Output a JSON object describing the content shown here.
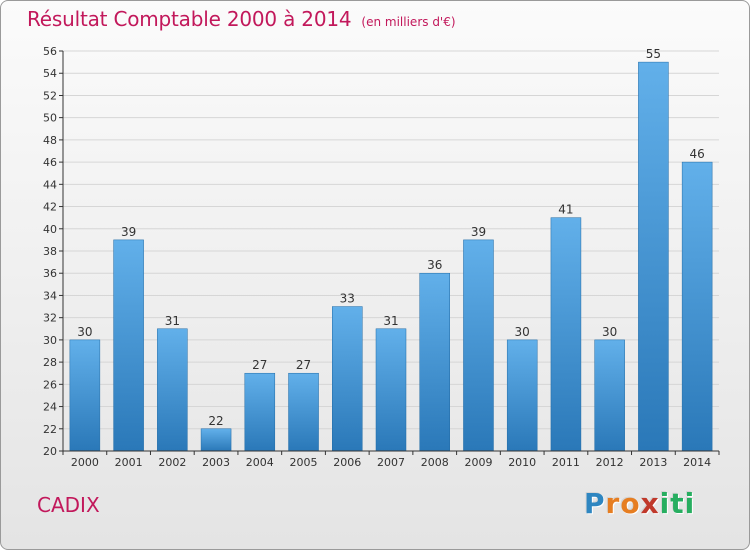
{
  "chart_data": {
    "type": "bar",
    "title": "Résultat Comptable 2000 à 2014",
    "unit_label": "(en milliers d'€)",
    "categories": [
      "2000",
      "2001",
      "2002",
      "2003",
      "2004",
      "2005",
      "2006",
      "2007",
      "2008",
      "2009",
      "2010",
      "2011",
      "2012",
      "2013",
      "2014"
    ],
    "values": [
      30,
      39,
      31,
      22,
      27,
      27,
      33,
      31,
      36,
      39,
      30,
      41,
      30,
      55,
      46
    ],
    "ylim": [
      20,
      56
    ],
    "ytick_step": 2,
    "xlabel": "",
    "ylabel": "",
    "grid": true
  },
  "commune": "CADIX",
  "logo": {
    "letters": [
      "P",
      "r",
      "o",
      "x",
      "i",
      "t",
      "i"
    ],
    "colors": [
      "#2e86c1",
      "#e67e22",
      "#e67e22",
      "#c0392b",
      "#27ae60",
      "#27ae60",
      "#27ae60"
    ]
  },
  "colors": {
    "bar_light": "#62b0ea",
    "bar_dark": "#2a78b8",
    "grid": "#d6d6d6",
    "accent": "#c2185b"
  }
}
